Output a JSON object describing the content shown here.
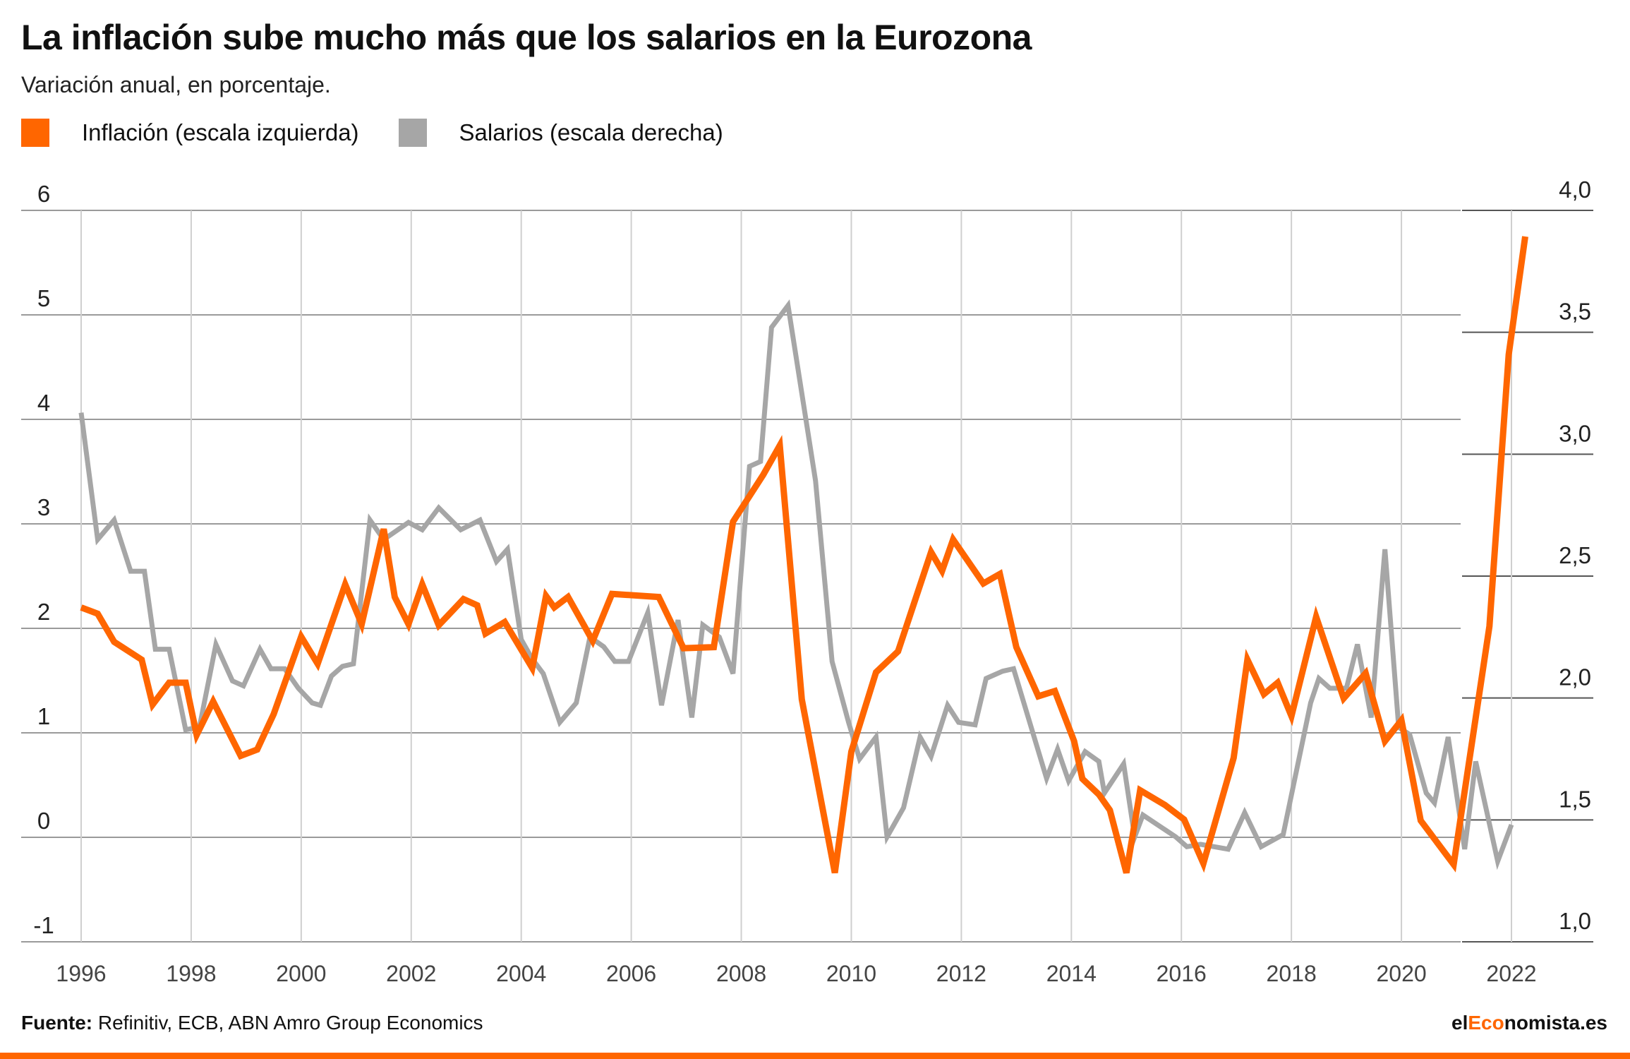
{
  "header": {
    "title": "La inflación sube mucho más que los salarios en la Eurozona",
    "subtitle": "Variación anual, en porcentaje."
  },
  "legend": [
    {
      "label": "Inflación (escala izquierda)",
      "color": "#ff6600"
    },
    {
      "label": "Salarios (escala derecha)",
      "color": "#a6a6a6"
    }
  ],
  "footer": {
    "source_label": "Fuente:",
    "source_text": " Refinitiv, ECB, ABN Amro Group Economics",
    "brand_prefix": "el",
    "brand_accent": "Eco",
    "brand_suffix": "nomista.es"
  },
  "chart_data": {
    "type": "line",
    "title": "La inflación sube mucho más que los salarios en la Eurozona",
    "subtitle": "Variación anual, en porcentaje.",
    "x_ticks": [
      "1996",
      "1998",
      "2000",
      "2002",
      "2004",
      "2006",
      "2008",
      "2010",
      "2012",
      "2014",
      "2016",
      "2018",
      "2020",
      "2022"
    ],
    "xlim": [
      1996,
      2023
    ],
    "y_left": {
      "ticks": [
        "6",
        "5",
        "4",
        "3",
        "2",
        "1",
        "0",
        "-1"
      ],
      "ylim": [
        -1,
        6
      ]
    },
    "y_right": {
      "ticks": [
        "4,0",
        "3,5",
        "3,0",
        "2,5",
        "2,0",
        "1,5",
        "1,0"
      ],
      "ylim": [
        1.0,
        4.0
      ]
    },
    "grid": true,
    "legend_position": "top-left",
    "series": [
      {
        "name": "Inflación (escala izquierda)",
        "axis": "left",
        "color": "#ff6600",
        "points": [
          [
            1996.0,
            2.2
          ],
          [
            1996.3,
            2.14
          ],
          [
            1996.6,
            1.87
          ],
          [
            1997.1,
            1.7
          ],
          [
            1997.3,
            1.27
          ],
          [
            1997.6,
            1.48
          ],
          [
            1997.9,
            1.48
          ],
          [
            1998.1,
            0.98
          ],
          [
            1998.4,
            1.3
          ],
          [
            1998.9,
            0.78
          ],
          [
            1999.2,
            0.84
          ],
          [
            1999.5,
            1.18
          ],
          [
            2000.0,
            1.92
          ],
          [
            2000.3,
            1.66
          ],
          [
            2000.8,
            2.42
          ],
          [
            2001.1,
            2.04
          ],
          [
            2001.5,
            2.95
          ],
          [
            2001.7,
            2.3
          ],
          [
            2001.95,
            2.04
          ],
          [
            2002.2,
            2.42
          ],
          [
            2002.5,
            2.03
          ],
          [
            2002.95,
            2.28
          ],
          [
            2003.2,
            2.22
          ],
          [
            2003.35,
            1.95
          ],
          [
            2003.7,
            2.06
          ],
          [
            2004.2,
            1.62
          ],
          [
            2004.45,
            2.31
          ],
          [
            2004.6,
            2.2
          ],
          [
            2004.85,
            2.3
          ],
          [
            2005.3,
            1.88
          ],
          [
            2005.65,
            2.33
          ],
          [
            2006.5,
            2.3
          ],
          [
            2006.95,
            1.81
          ],
          [
            2007.5,
            1.82
          ],
          [
            2007.85,
            3.02
          ],
          [
            2008.4,
            3.47
          ],
          [
            2008.7,
            3.75
          ],
          [
            2009.1,
            1.32
          ],
          [
            2009.7,
            -0.34
          ],
          [
            2010.0,
            0.82
          ],
          [
            2010.45,
            1.58
          ],
          [
            2010.85,
            1.78
          ],
          [
            2011.45,
            2.73
          ],
          [
            2011.65,
            2.55
          ],
          [
            2011.85,
            2.85
          ],
          [
            2012.4,
            2.43
          ],
          [
            2012.7,
            2.52
          ],
          [
            2013.0,
            1.82
          ],
          [
            2013.4,
            1.35
          ],
          [
            2013.7,
            1.4
          ],
          [
            2014.05,
            0.92
          ],
          [
            2014.2,
            0.56
          ],
          [
            2014.5,
            0.41
          ],
          [
            2014.7,
            0.26
          ],
          [
            2015.0,
            -0.34
          ],
          [
            2015.25,
            0.45
          ],
          [
            2015.7,
            0.31
          ],
          [
            2016.05,
            0.17
          ],
          [
            2016.4,
            -0.25
          ],
          [
            2016.95,
            0.76
          ],
          [
            2017.2,
            1.7
          ],
          [
            2017.5,
            1.37
          ],
          [
            2017.75,
            1.48
          ],
          [
            2018.0,
            1.16
          ],
          [
            2018.45,
            2.11
          ],
          [
            2018.7,
            1.72
          ],
          [
            2018.95,
            1.33
          ],
          [
            2019.35,
            1.57
          ],
          [
            2019.7,
            0.92
          ],
          [
            2020.0,
            1.12
          ],
          [
            2020.35,
            0.16
          ],
          [
            2020.95,
            -0.26
          ],
          [
            2021.6,
            2.02
          ],
          [
            2021.95,
            4.62
          ],
          [
            2022.25,
            5.75
          ]
        ]
      },
      {
        "name": "Salarios (escala derecha)",
        "axis": "right",
        "color": "#a6a6a6",
        "points": [
          [
            1996.0,
            3.17
          ],
          [
            1996.3,
            2.65
          ],
          [
            1996.6,
            2.73
          ],
          [
            1996.9,
            2.52
          ],
          [
            1997.15,
            2.52
          ],
          [
            1997.35,
            2.2
          ],
          [
            1997.6,
            2.2
          ],
          [
            1997.9,
            1.87
          ],
          [
            1998.15,
            1.88
          ],
          [
            1998.45,
            2.22
          ],
          [
            1998.75,
            2.07
          ],
          [
            1998.95,
            2.05
          ],
          [
            1999.25,
            2.2
          ],
          [
            1999.45,
            2.12
          ],
          [
            1999.7,
            2.12
          ],
          [
            1999.95,
            2.04
          ],
          [
            2000.2,
            1.98
          ],
          [
            2000.35,
            1.97
          ],
          [
            2000.55,
            2.09
          ],
          [
            2000.75,
            2.13
          ],
          [
            2000.95,
            2.14
          ],
          [
            2001.25,
            2.73
          ],
          [
            2001.5,
            2.65
          ],
          [
            2001.95,
            2.72
          ],
          [
            2002.2,
            2.69
          ],
          [
            2002.5,
            2.78
          ],
          [
            2002.9,
            2.69
          ],
          [
            2003.25,
            2.73
          ],
          [
            2003.55,
            2.56
          ],
          [
            2003.75,
            2.61
          ],
          [
            2004.0,
            2.24
          ],
          [
            2004.2,
            2.16
          ],
          [
            2004.4,
            2.1
          ],
          [
            2004.7,
            1.9
          ],
          [
            2005.0,
            1.98
          ],
          [
            2005.25,
            2.25
          ],
          [
            2005.5,
            2.21
          ],
          [
            2005.7,
            2.15
          ],
          [
            2005.95,
            2.15
          ],
          [
            2006.3,
            2.35
          ],
          [
            2006.55,
            1.97
          ],
          [
            2006.85,
            2.32
          ],
          [
            2007.1,
            1.92
          ],
          [
            2007.3,
            2.3
          ],
          [
            2007.6,
            2.25
          ],
          [
            2007.85,
            2.1
          ],
          [
            2008.15,
            2.95
          ],
          [
            2008.35,
            2.97
          ],
          [
            2008.55,
            3.52
          ],
          [
            2008.85,
            3.61
          ],
          [
            2009.35,
            2.89
          ],
          [
            2009.65,
            2.15
          ],
          [
            2009.95,
            1.9
          ],
          [
            2010.15,
            1.75
          ],
          [
            2010.45,
            1.84
          ],
          [
            2010.65,
            1.43
          ],
          [
            2010.95,
            1.55
          ],
          [
            2011.25,
            1.84
          ],
          [
            2011.45,
            1.76
          ],
          [
            2011.75,
            1.97
          ],
          [
            2011.95,
            1.9
          ],
          [
            2012.25,
            1.89
          ],
          [
            2012.45,
            2.08
          ],
          [
            2012.75,
            2.11
          ],
          [
            2012.95,
            2.12
          ],
          [
            2013.55,
            1.67
          ],
          [
            2013.75,
            1.79
          ],
          [
            2013.95,
            1.66
          ],
          [
            2014.25,
            1.78
          ],
          [
            2014.5,
            1.74
          ],
          [
            2014.6,
            1.61
          ],
          [
            2014.95,
            1.73
          ],
          [
            2015.15,
            1.43
          ],
          [
            2015.3,
            1.52
          ],
          [
            2015.9,
            1.43
          ],
          [
            2016.1,
            1.39
          ],
          [
            2016.35,
            1.4
          ],
          [
            2016.85,
            1.38
          ],
          [
            2017.15,
            1.53
          ],
          [
            2017.45,
            1.39
          ],
          [
            2017.85,
            1.44
          ],
          [
            2018.35,
            1.98
          ],
          [
            2018.5,
            2.08
          ],
          [
            2018.7,
            2.04
          ],
          [
            2019.0,
            2.04
          ],
          [
            2019.2,
            2.22
          ],
          [
            2019.45,
            1.92
          ],
          [
            2019.7,
            2.61
          ],
          [
            2019.95,
            1.88
          ],
          [
            2020.15,
            1.85
          ],
          [
            2020.45,
            1.61
          ],
          [
            2020.6,
            1.57
          ],
          [
            2020.85,
            1.84
          ],
          [
            2021.15,
            1.38
          ],
          [
            2021.35,
            1.74
          ],
          [
            2021.75,
            1.33
          ],
          [
            2022.0,
            1.48
          ]
        ]
      }
    ]
  }
}
